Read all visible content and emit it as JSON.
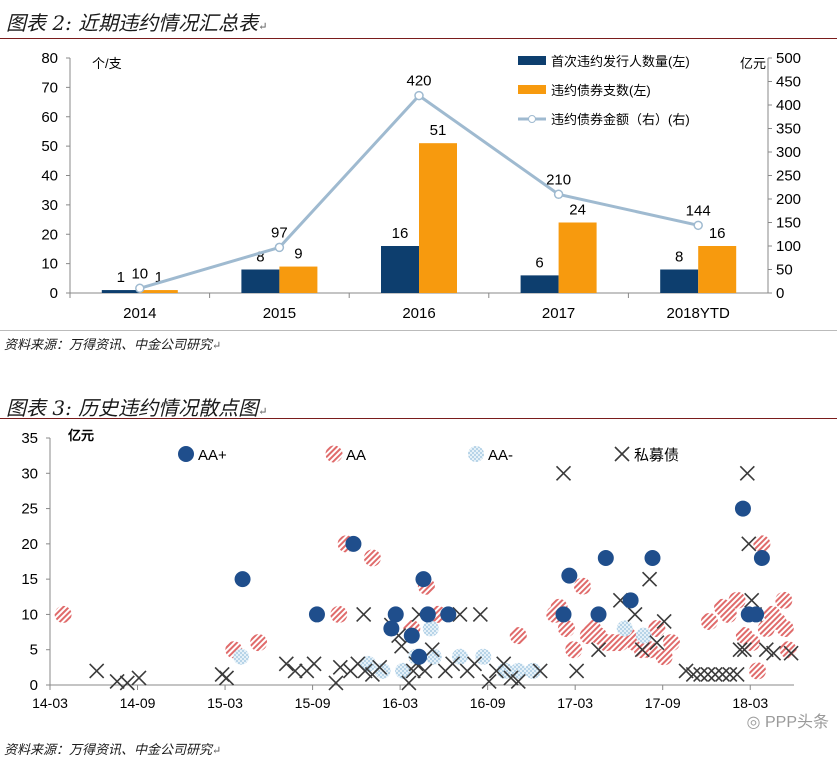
{
  "figure2": {
    "title": "图表 2: 近期违约情况汇总表",
    "source": "资料来源：万得资讯、中金公司研究",
    "unit_left": "个/支",
    "unit_right": "亿元"
  },
  "figure3": {
    "title": "图表 3: 历史违约情况散点图",
    "source": "资料来源：万得资讯、中金公司研究",
    "unit": "亿元"
  },
  "watermark": "PPP头条",
  "para_mark": "↵",
  "chart_data": [
    {
      "type": "bar",
      "categories": [
        "2014",
        "2015",
        "2016",
        "2017",
        "2018YTD"
      ],
      "series": [
        {
          "name": "首次违约发行人数量(左)",
          "values": [
            1,
            8,
            16,
            6,
            8
          ],
          "color": "#0d3e6e",
          "axis": "left"
        },
        {
          "name": "违约债券支数(左)",
          "values": [
            1,
            9,
            51,
            24,
            16
          ],
          "color": "#f79a0e",
          "axis": "left"
        },
        {
          "name": "违约债券金额（右）(右)",
          "type": "line",
          "values": [
            10,
            97,
            420,
            210,
            144
          ],
          "color": "#9fbad0",
          "axis": "right"
        }
      ],
      "ylim": [
        0,
        80
      ],
      "yticks": [
        0,
        10,
        20,
        30,
        40,
        50,
        60,
        70,
        80
      ],
      "y2lim": [
        0,
        500
      ],
      "y2ticks": [
        0,
        50,
        100,
        150,
        200,
        250,
        300,
        350,
        400,
        450,
        500
      ],
      "ylabel": "个/支",
      "y2label": "亿元"
    },
    {
      "type": "scatter",
      "xlim": [
        0,
        51
      ],
      "ylim": [
        0,
        35
      ],
      "xticks": [
        {
          "pos": 0,
          "label": "14-03"
        },
        {
          "pos": 6,
          "label": "14-09"
        },
        {
          "pos": 12,
          "label": "15-03"
        },
        {
          "pos": 18,
          "label": "15-09"
        },
        {
          "pos": 24,
          "label": "16-03"
        },
        {
          "pos": 30,
          "label": "16-09"
        },
        {
          "pos": 36,
          "label": "17-03"
        },
        {
          "pos": 42,
          "label": "17-09"
        },
        {
          "pos": 48,
          "label": "18-03"
        }
      ],
      "yticks": [
        0,
        5,
        10,
        15,
        20,
        25,
        30,
        35
      ],
      "ylabel": "亿元",
      "series": [
        {
          "name": "AA+",
          "marker": "dot",
          "color": "#1f4e8c",
          "points": [
            [
              13.2,
              15
            ],
            [
              18.3,
              10
            ],
            [
              20.8,
              20
            ],
            [
              23.4,
              8
            ],
            [
              23.7,
              10
            ],
            [
              24.8,
              7
            ],
            [
              25.3,
              4
            ],
            [
              25.6,
              15
            ],
            [
              25.9,
              10
            ],
            [
              27.3,
              10
            ],
            [
              35.2,
              10
            ],
            [
              35.6,
              15.5
            ],
            [
              37.6,
              10
            ],
            [
              38.1,
              18
            ],
            [
              39.8,
              12
            ],
            [
              41.3,
              18
            ],
            [
              47.5,
              25
            ],
            [
              47.9,
              10
            ],
            [
              48.4,
              10
            ],
            [
              48.8,
              18
            ]
          ]
        },
        {
          "name": "AA",
          "marker": "hatched",
          "color": "#e06b6b",
          "points": [
            [
              0.9,
              10
            ],
            [
              12.6,
              5
            ],
            [
              14.3,
              6
            ],
            [
              19.8,
              10
            ],
            [
              20.3,
              20
            ],
            [
              22.1,
              18
            ],
            [
              24.8,
              8
            ],
            [
              25.8,
              14
            ],
            [
              26.6,
              10
            ],
            [
              32.1,
              7
            ],
            [
              34.6,
              10
            ],
            [
              34.9,
              11
            ],
            [
              35.4,
              8
            ],
            [
              35.9,
              5
            ],
            [
              36.5,
              14
            ],
            [
              36.9,
              7
            ],
            [
              37.2,
              8
            ],
            [
              37.6,
              7
            ],
            [
              38.1,
              6
            ],
            [
              38.6,
              6
            ],
            [
              39.1,
              6
            ],
            [
              39.6,
              7
            ],
            [
              40.1,
              6
            ],
            [
              40.6,
              5
            ],
            [
              41.1,
              5
            ],
            [
              41.6,
              8
            ],
            [
              42.1,
              4
            ],
            [
              42.6,
              6
            ],
            [
              45.2,
              9
            ],
            [
              46.1,
              11
            ],
            [
              46.5,
              10
            ],
            [
              47.1,
              12
            ],
            [
              47.6,
              7
            ],
            [
              48.1,
              6
            ],
            [
              48.5,
              2
            ],
            [
              49.1,
              8
            ],
            [
              49.5,
              10
            ],
            [
              49.9,
              9
            ],
            [
              50.3,
              12
            ],
            [
              50.4,
              8
            ],
            [
              50.6,
              5
            ],
            [
              48.8,
              20
            ]
          ]
        },
        {
          "name": "AA-",
          "marker": "speckled",
          "color": "#b9d6ea",
          "points": [
            [
              13.1,
              4
            ],
            [
              21.8,
              3
            ],
            [
              22.8,
              2
            ],
            [
              24.2,
              2
            ],
            [
              25.1,
              4
            ],
            [
              26.1,
              8
            ],
            [
              26.3,
              4
            ],
            [
              28.1,
              4
            ],
            [
              29.7,
              4
            ],
            [
              31.2,
              2
            ],
            [
              32.1,
              2
            ],
            [
              33.1,
              2
            ],
            [
              39.4,
              8
            ],
            [
              40.7,
              7
            ]
          ]
        },
        {
          "name": "私募债",
          "marker": "x",
          "color": "#3a3a3a",
          "points": [
            [
              3.2,
              2
            ],
            [
              4.6,
              0.5
            ],
            [
              5.3,
              0.3
            ],
            [
              6.1,
              1
            ],
            [
              11.8,
              1.5
            ],
            [
              12.1,
              1
            ],
            [
              16.2,
              3
            ],
            [
              16.8,
              2
            ],
            [
              17.6,
              2
            ],
            [
              18.1,
              3
            ],
            [
              19.6,
              0.3
            ],
            [
              19.9,
              2.5
            ],
            [
              20.6,
              2
            ],
            [
              21.1,
              3
            ],
            [
              21.6,
              2
            ],
            [
              22.1,
              1.5
            ],
            [
              21.5,
              10
            ],
            [
              22.6,
              2.5
            ],
            [
              23.4,
              8.5
            ],
            [
              23.9,
              7
            ],
            [
              24.1,
              5.5
            ],
            [
              24.6,
              0.3
            ],
            [
              24.9,
              2
            ],
            [
              25.1,
              3
            ],
            [
              25.3,
              10
            ],
            [
              25.7,
              2
            ],
            [
              26.2,
              5
            ],
            [
              27.1,
              2
            ],
            [
              27.6,
              3
            ],
            [
              28.1,
              10
            ],
            [
              28.6,
              2
            ],
            [
              29.1,
              3
            ],
            [
              29.5,
              10
            ],
            [
              30.1,
              0.5
            ],
            [
              30.6,
              2
            ],
            [
              31.1,
              3
            ],
            [
              31.6,
              1
            ],
            [
              32.1,
              0.5
            ],
            [
              33.6,
              2
            ],
            [
              35.2,
              30
            ],
            [
              36.1,
              2
            ],
            [
              37.6,
              5
            ],
            [
              39.1,
              12
            ],
            [
              40.1,
              10
            ],
            [
              40.6,
              5
            ],
            [
              41.1,
              15
            ],
            [
              41.6,
              6
            ],
            [
              42.1,
              9
            ],
            [
              43.6,
              2
            ],
            [
              44.1,
              1.5
            ],
            [
              44.6,
              1.5
            ],
            [
              45.1,
              1.5
            ],
            [
              45.6,
              1.5
            ],
            [
              46.1,
              1.5
            ],
            [
              46.6,
              1.5
            ],
            [
              47.1,
              1.5
            ],
            [
              47.3,
              5
            ],
            [
              47.6,
              5
            ],
            [
              47.8,
              30
            ],
            [
              47.9,
              20
            ],
            [
              48.1,
              12
            ],
            [
              48.3,
              10
            ],
            [
              49.1,
              5
            ],
            [
              49.6,
              4.5
            ],
            [
              50.8,
              4.5
            ]
          ]
        }
      ]
    }
  ]
}
